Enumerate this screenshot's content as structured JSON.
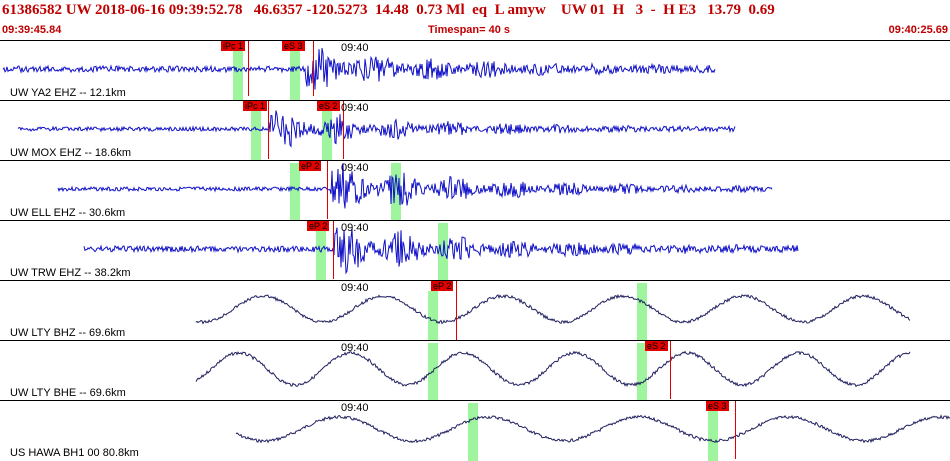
{
  "header": {
    "event_line": "61386582 UW 2018-06-16 09:39:52.78   46.6357 -120.5273  14.48  0.73 Ml  eq  L amyw    UW 01  H   3  -  H E3   13.79  0.69",
    "start_time": "09:39:45.84",
    "timespan": "Timespan=  40 s",
    "end_time": "09:40:25.69"
  },
  "colors": {
    "header_text": "#c00000",
    "trace_hf": "#1010c8",
    "trace_lf": "#202060",
    "pick": "#e00000",
    "window": "#9ef59e"
  },
  "panels": [
    {
      "station": "UW YA2 EHZ -- 12.1km",
      "time_label": "09:40",
      "picks": [
        "iPc 1",
        "eS 3"
      ]
    },
    {
      "station": "UW MOX EHZ -- 18.6km",
      "time_label": "09:40",
      "picks": [
        "iPc 1",
        "eS 2"
      ]
    },
    {
      "station": "UW ELL EHZ -- 30.6km",
      "time_label": "09:40",
      "picks": [
        "eP 2"
      ]
    },
    {
      "station": "UW TRW EHZ -- 38.2km",
      "time_label": "09:40",
      "picks": [
        "eP 2"
      ]
    },
    {
      "station": "UW LTY BHZ -- 69.6km",
      "time_label": "09:40",
      "picks": [
        "eP 2"
      ]
    },
    {
      "station": "UW LTY BHE -- 69.6km",
      "time_label": "09:40",
      "picks": [
        "eS 2"
      ]
    },
    {
      "station": "US HAWA BH1 00 80.8km",
      "time_label": "09:40",
      "picks": [
        "eS 3"
      ]
    }
  ]
}
